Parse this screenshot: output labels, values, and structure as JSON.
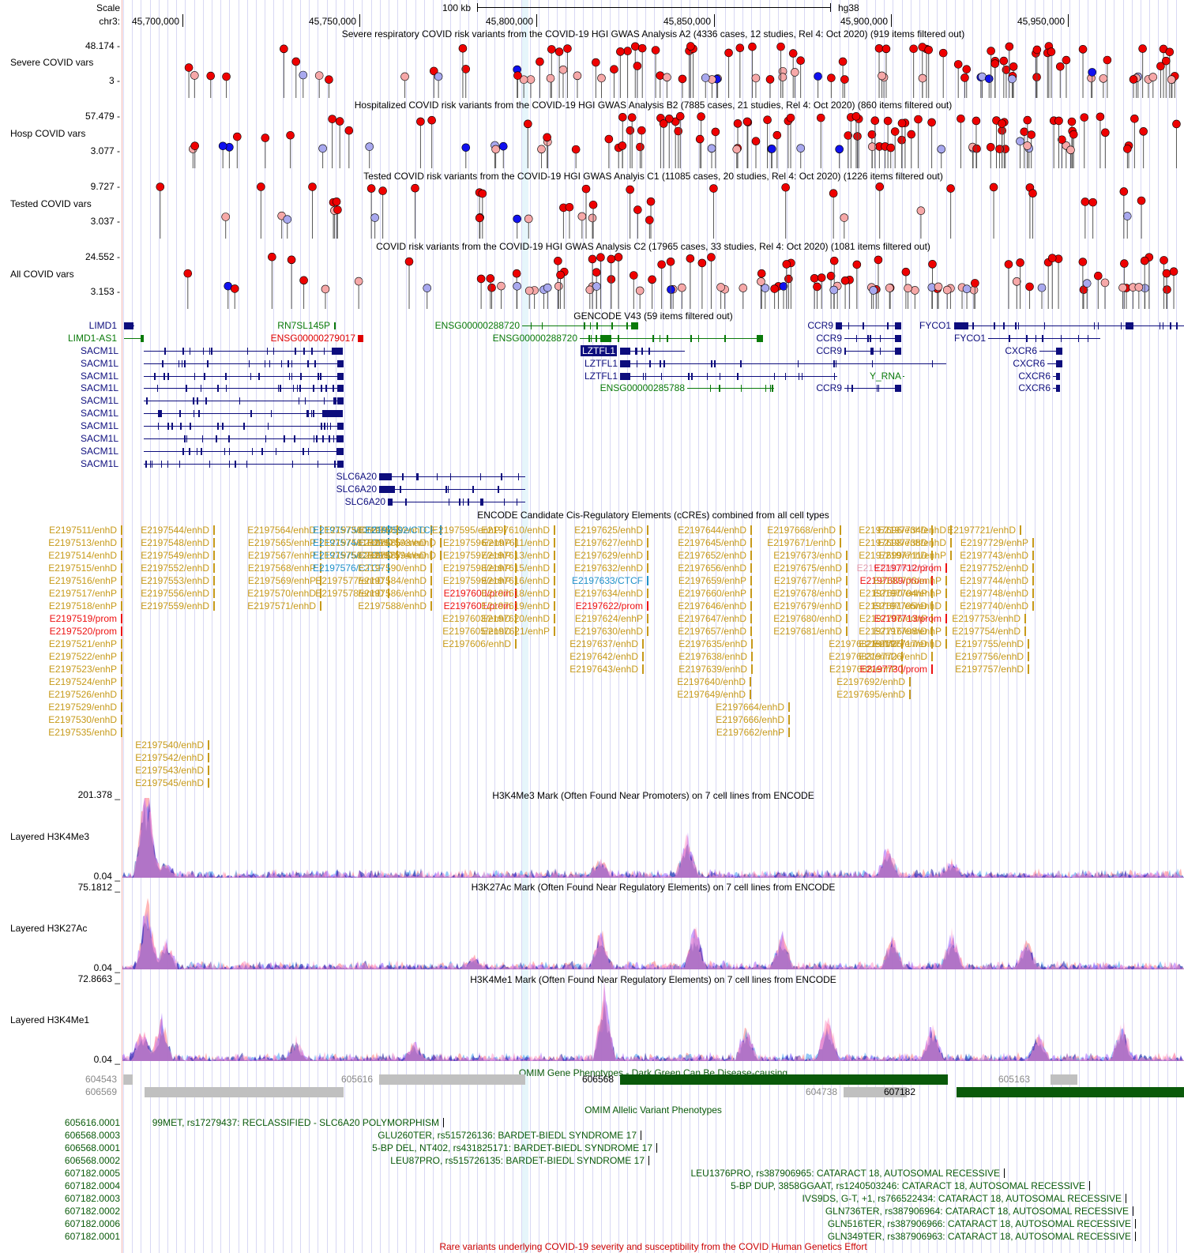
{
  "header": {
    "scale_label": "Scale",
    "scale_text": "100 kb",
    "assembly": "hg38",
    "chrom_label": "chr3:",
    "positions": [
      "45,700,000",
      "45,750,000",
      "45,800,000",
      "45,850,000",
      "45,900,000",
      "45,950,000"
    ]
  },
  "tracks": {
    "severe": {
      "label": "Severe COVID vars",
      "title": "Severe respiratory COVID risk variants from the COVID-19 HGI GWAS Analysis A2 (4336 cases, 12 studies, Rel 4: Oct 2020) (919 items filtered out)",
      "ymax": "48.174 -",
      "ymin": "3 -"
    },
    "hosp": {
      "label": "Hosp COVID vars",
      "title": "Hospitalized COVID risk variants from the COVID-19 HGI GWAS Analysis B2 (7885 cases, 21 studies, Rel 4: Oct 2020) (860 items filtered out)",
      "ymax": "57.479 -",
      "ymin": "3.077 -"
    },
    "tested": {
      "label": "Tested COVID vars",
      "title": "Tested COVID risk variants from the COVID-19 HGI GWAS Analyis C1 (11085 cases, 20 studies, Rel 4: Oct 2020) (1226 items filtered out)",
      "ymax": "9.727 -",
      "ymin": "3.037 -"
    },
    "all": {
      "label": "All COVID vars",
      "title": "COVID risk variants from the COVID-19 HGI GWAS Analysis C2 (17965 cases, 33 studies, Rel 4: Oct 2020) (1081 items filtered out)",
      "ymax": "24.552 -",
      "ymin": "3.153 -"
    },
    "gencode": {
      "title": "GENCODE V43 (59 items filtered out)"
    },
    "ccre": {
      "title": "ENCODE Candidate Cis-Regulatory Elements (cCREs) combined from all cell types"
    },
    "h3k4me3": {
      "label": "Layered H3K4Me3",
      "title": "H3K4Me3 Mark (Often Found Near Promoters) on 7 cell lines from ENCODE",
      "ymax": "201.378 _",
      "ymin": "0.04 _"
    },
    "h3k27ac": {
      "label": "Layered H3K27Ac",
      "title": "H3K27Ac Mark (Often Found Near Regulatory Elements) on 7 cell lines from ENCODE",
      "ymax": "75.1812 _",
      "ymin": "0.04 _"
    },
    "h3k4me1": {
      "label": "Layered H3K4Me1",
      "title": "H3K4Me1 Mark (Often Found Near Regulatory Elements) on 7 cell lines from ENCODE",
      "ymax": "72.8663 _",
      "ymin": "0.04 _"
    },
    "omim_gene": {
      "title": "OMIM Gene Phenotypes - Dark Green Can Be Disease-causing"
    },
    "omim_allelic": {
      "title": "OMIM Allelic Variant Phenotypes"
    },
    "rare": {
      "title": "Rare variants underlying COVID-19 severity and susceptibility from the COVID Human Genetics Effort"
    }
  },
  "colors": {
    "gene_blue": "#0d0d7d",
    "gene_green": "#0a7a0a",
    "gene_red": "#e00000",
    "enh": "#c79a1a",
    "prom": "#ee1111",
    "ctcf": "#1e90c8",
    "k4m3": "#e29bac",
    "omim_dark": "#0a5a0a",
    "omim_gray": "#c0c0c0",
    "pt_red": "#ee0000",
    "pt_pink": "#f6a8a8",
    "pt_blue": "#1010ee",
    "pt_lblue": "#a8a8ee"
  },
  "genes": [
    {
      "name": "LIMD1",
      "c": "blue"
    },
    {
      "name": "LIMD1-AS1",
      "c": "green"
    },
    {
      "name": "RN7SL145P",
      "c": "green"
    },
    {
      "name": "ENSG00000279017",
      "c": "red"
    },
    {
      "name": "SACM1L",
      "c": "blue"
    },
    {
      "name": "SACM1L",
      "c": "blue"
    },
    {
      "name": "SACM1L",
      "c": "blue"
    },
    {
      "name": "SACM1L",
      "c": "blue"
    },
    {
      "name": "SACM1L",
      "c": "blue"
    },
    {
      "name": "SACM1L",
      "c": "blue"
    },
    {
      "name": "SACM1L",
      "c": "blue"
    },
    {
      "name": "SACM1L",
      "c": "blue"
    },
    {
      "name": "SACM1L",
      "c": "blue"
    },
    {
      "name": "SACM1L",
      "c": "blue"
    },
    {
      "name": "SLC6A20",
      "c": "blue"
    },
    {
      "name": "SLC6A20",
      "c": "blue"
    },
    {
      "name": "SLC6A20",
      "c": "blue"
    },
    {
      "name": "ENSG00000288720",
      "c": "green"
    },
    {
      "name": "ENSG00000288720",
      "c": "green"
    },
    {
      "name": "LZTFL1",
      "c": "sel"
    },
    {
      "name": "LZTFL1",
      "c": "blue"
    },
    {
      "name": "LZTFL1",
      "c": "blue"
    },
    {
      "name": "ENSG00000285788",
      "c": "green"
    },
    {
      "name": "CCR9",
      "c": "blue"
    },
    {
      "name": "CCR9",
      "c": "blue"
    },
    {
      "name": "CCR9",
      "c": "blue"
    },
    {
      "name": "Y_RNA",
      "c": "green"
    },
    {
      "name": "CCR9",
      "c": "blue"
    },
    {
      "name": "FYCO1",
      "c": "blue"
    },
    {
      "name": "FYCO1",
      "c": "blue"
    },
    {
      "name": "CXCR6",
      "c": "blue"
    },
    {
      "name": "CXCR6",
      "c": "blue"
    },
    {
      "name": "CXCR6",
      "c": "blue"
    },
    {
      "name": "CXCR6",
      "c": "blue"
    }
  ],
  "ccre": [
    {
      "t": "E2197511/enhD",
      "k": "enh"
    },
    {
      "t": "E2197513/enhD",
      "k": "enh"
    },
    {
      "t": "E2197514/enhD",
      "k": "enh"
    },
    {
      "t": "E2197515/enhD",
      "k": "enh"
    },
    {
      "t": "E2197516/enhP",
      "k": "enh"
    },
    {
      "t": "E2197517/enhP",
      "k": "enh"
    },
    {
      "t": "E2197518/enhP",
      "k": "enh"
    },
    {
      "t": "E2197519/prom",
      "k": "prom"
    },
    {
      "t": "E2197520/prom",
      "k": "prom"
    },
    {
      "t": "E2197521/enhP",
      "k": "enh"
    },
    {
      "t": "E2197522/enhP",
      "k": "enh"
    },
    {
      "t": "E2197523/enhP",
      "k": "enh"
    },
    {
      "t": "E2197524/enhP",
      "k": "enh"
    },
    {
      "t": "E2197526/enhD",
      "k": "enh"
    },
    {
      "t": "E2197529/enhD",
      "k": "enh"
    },
    {
      "t": "E2197530/enhD",
      "k": "enh"
    },
    {
      "t": "E2197535/enhD",
      "k": "enh"
    },
    {
      "t": "E2197540/enhD",
      "k": "enh"
    },
    {
      "t": "E2197542/enhD",
      "k": "enh"
    },
    {
      "t": "E2197543/enhD",
      "k": "enh"
    },
    {
      "t": "E2197545/enhD",
      "k": "enh"
    },
    {
      "t": "E2197544/enhD",
      "k": "enh"
    },
    {
      "t": "E2197548/enhD",
      "k": "enh"
    },
    {
      "t": "E2197549/enhD",
      "k": "enh"
    },
    {
      "t": "E2197552/enhD",
      "k": "enh"
    },
    {
      "t": "E2197553/enhD",
      "k": "enh"
    },
    {
      "t": "E2197556/enhD",
      "k": "enh"
    },
    {
      "t": "E2197559/enhD",
      "k": "enh"
    },
    {
      "t": "E2197564/enhD",
      "k": "enh"
    },
    {
      "t": "E2197565/enhP",
      "k": "enh"
    },
    {
      "t": "E2197567/enhP",
      "k": "enh"
    },
    {
      "t": "E2197568/enhP",
      "k": "enh"
    },
    {
      "t": "E2197569/enhP",
      "k": "enh"
    },
    {
      "t": "E2197570/enhD",
      "k": "enh"
    },
    {
      "t": "E2197571/enhD",
      "k": "enh"
    },
    {
      "t": "E2197573/CTCF",
      "k": "ctcf"
    },
    {
      "t": "E2197574/CTCF",
      "k": "ctcf"
    },
    {
      "t": "E2197575/CTCF",
      "k": "ctcf"
    },
    {
      "t": "E2197576/CTCF",
      "k": "ctcf"
    },
    {
      "t": "E2197577/enhD",
      "k": "enh"
    },
    {
      "t": "E2197578/enhD",
      "k": "enh"
    },
    {
      "t": "E2197580/enhD",
      "k": "enh"
    },
    {
      "t": "E2197581/enhD",
      "k": "enh"
    },
    {
      "t": "E2197582/enhD",
      "k": "enh"
    },
    {
      "t": "E2197583/enhD",
      "k": "enh"
    },
    {
      "t": "E2197585/enhD",
      "k": "enh"
    },
    {
      "t": "E2197587/enhD",
      "k": "enh"
    },
    {
      "t": "E2197590/enhD",
      "k": "enh"
    },
    {
      "t": "E2197584/enhD",
      "k": "enh"
    },
    {
      "t": "E2197586/enhD",
      "k": "enh"
    },
    {
      "t": "E2197588/enhD",
      "k": "enh"
    },
    {
      "t": "E2197592/CTCF",
      "k": "ctcf"
    },
    {
      "t": "E2197593/enhD",
      "k": "enh"
    },
    {
      "t": "E2197594/enhD",
      "k": "enh"
    },
    {
      "t": "E2197595/enhP",
      "k": "enh"
    },
    {
      "t": "E2197596/enhP",
      "k": "enh"
    },
    {
      "t": "E2197597/enhP",
      "k": "enh"
    },
    {
      "t": "E2197598/enhP",
      "k": "enh"
    },
    {
      "t": "E2197599/enhP",
      "k": "enh"
    },
    {
      "t": "E2197600/prom",
      "k": "prom"
    },
    {
      "t": "E2197601/prom",
      "k": "prom"
    },
    {
      "t": "E2197603/enhD",
      "k": "enh"
    },
    {
      "t": "E2197605/enhD",
      "k": "enh"
    },
    {
      "t": "E2197606/enhD",
      "k": "enh"
    },
    {
      "t": "E2197610/enhD",
      "k": "enh"
    },
    {
      "t": "E2197611/enhD",
      "k": "enh"
    },
    {
      "t": "E2197613/enhD",
      "k": "enh"
    },
    {
      "t": "E2197615/enhD",
      "k": "enh"
    },
    {
      "t": "E2197616/enhD",
      "k": "enh"
    },
    {
      "t": "E2197618/enhD",
      "k": "enh"
    },
    {
      "t": "E2197619/enhD",
      "k": "enh"
    },
    {
      "t": "E2197620/enhD",
      "k": "enh"
    },
    {
      "t": "E2197621/enhP",
      "k": "enh"
    },
    {
      "t": "E2197625/enhD",
      "k": "enh"
    },
    {
      "t": "E2197627/enhD",
      "k": "enh"
    },
    {
      "t": "E2197629/enhD",
      "k": "enh"
    },
    {
      "t": "E2197632/enhD",
      "k": "enh"
    },
    {
      "t": "E2197633/CTCF",
      "k": "ctcf"
    },
    {
      "t": "E2197634/enhD",
      "k": "enh"
    },
    {
      "t": "E2197622/prom",
      "k": "prom"
    },
    {
      "t": "E2197624/enhP",
      "k": "enh"
    },
    {
      "t": "E2197630/enhD",
      "k": "enh"
    },
    {
      "t": "E2197637/enhD",
      "k": "enh"
    },
    {
      "t": "E2197642/enhD",
      "k": "enh"
    },
    {
      "t": "E2197643/enhD",
      "k": "enh"
    },
    {
      "t": "E2197644/enhD",
      "k": "enh"
    },
    {
      "t": "E2197645/enhD",
      "k": "enh"
    },
    {
      "t": "E2197652/enhD",
      "k": "enh"
    },
    {
      "t": "E2197656/enhD",
      "k": "enh"
    },
    {
      "t": "E2197659/enhP",
      "k": "enh"
    },
    {
      "t": "E2197660/enhP",
      "k": "enh"
    },
    {
      "t": "E2197646/enhD",
      "k": "enh"
    },
    {
      "t": "E2197647/enhD",
      "k": "enh"
    },
    {
      "t": "E2197657/enhD",
      "k": "enh"
    },
    {
      "t": "E2197635/enhD",
      "k": "enh"
    },
    {
      "t": "E2197638/enhD",
      "k": "enh"
    },
    {
      "t": "E2197639/enhD",
      "k": "enh"
    },
    {
      "t": "E2197640/enhD",
      "k": "enh"
    },
    {
      "t": "E2197649/enhD",
      "k": "enh"
    },
    {
      "t": "E2197664/enhD",
      "k": "enh"
    },
    {
      "t": "E2197666/enhD",
      "k": "enh"
    },
    {
      "t": "E2197662/enhP",
      "k": "enh"
    },
    {
      "t": "E2197668/enhD",
      "k": "enh"
    },
    {
      "t": "E2197671/enhD",
      "k": "enh"
    },
    {
      "t": "E2197673/enhD",
      "k": "enh"
    },
    {
      "t": "E2197675/enhD",
      "k": "enh"
    },
    {
      "t": "E2197677/enhP",
      "k": "enh"
    },
    {
      "t": "E2197678/enhD",
      "k": "enh"
    },
    {
      "t": "E2197679/enhD",
      "k": "enh"
    },
    {
      "t": "E2197680/enhD",
      "k": "enh"
    },
    {
      "t": "E2197681/enhD",
      "k": "enh"
    },
    {
      "t": "E2197682/enhD",
      "k": "enh"
    },
    {
      "t": "E2197683/enhD",
      "k": "enh"
    },
    {
      "t": "E2197688/enhP",
      "k": "enh"
    },
    {
      "t": "E2197692/enhD",
      "k": "enh"
    },
    {
      "t": "E2197695/enhD",
      "k": "enh"
    },
    {
      "t": "E2197696/enhD",
      "k": "enh"
    },
    {
      "t": "E2197698/enhD",
      "k": "enh"
    },
    {
      "t": "E2197699/enhD",
      "k": "enh"
    },
    {
      "t": "E2197700/K4m3",
      "k": "k4m3"
    },
    {
      "t": "E2197689/prom",
      "k": "prom"
    },
    {
      "t": "E2197690/enhP",
      "k": "enh"
    },
    {
      "t": "E2197691/enhD",
      "k": "enh"
    },
    {
      "t": "E2197706/enhP",
      "k": "enh"
    },
    {
      "t": "E2197716/enhD",
      "k": "enh"
    },
    {
      "t": "E2197725/enhD",
      "k": "enh"
    },
    {
      "t": "E2197726/enhD",
      "k": "enh"
    },
    {
      "t": "E2197730/prom",
      "k": "prom"
    },
    {
      "t": "E2197734/enhD",
      "k": "enh"
    },
    {
      "t": "E2197738/enhD",
      "k": "enh"
    },
    {
      "t": "E2197711/enhP",
      "k": "enh"
    },
    {
      "t": "E2197712/prom",
      "k": "prom"
    },
    {
      "t": "E2197703/enhP",
      "k": "enh"
    },
    {
      "t": "E2197704/enhP",
      "k": "enh"
    },
    {
      "t": "E2197705/enhD",
      "k": "enh"
    },
    {
      "t": "E2197713/prom",
      "k": "prom"
    },
    {
      "t": "E2197708/enhP",
      "k": "enh"
    },
    {
      "t": "E2197717/enhD",
      "k": "enh"
    },
    {
      "t": "E2197721/enhD",
      "k": "enh"
    },
    {
      "t": "E2197729/enhP",
      "k": "enh"
    },
    {
      "t": "E2197743/enhD",
      "k": "enh"
    },
    {
      "t": "E2197752/enhD",
      "k": "enh"
    },
    {
      "t": "E2197744/enhD",
      "k": "enh"
    },
    {
      "t": "E2197748/enhD",
      "k": "enh"
    },
    {
      "t": "E2197740/enhD",
      "k": "enh"
    },
    {
      "t": "E2197753/enhD",
      "k": "enh"
    },
    {
      "t": "E2197754/enhD",
      "k": "enh"
    },
    {
      "t": "E2197755/enhD",
      "k": "enh"
    },
    {
      "t": "E2197756/enhD",
      "k": "enh"
    },
    {
      "t": "E2197757/enhD",
      "k": "enh"
    }
  ],
  "omim_genes": [
    {
      "id": "604543",
      "dark": false
    },
    {
      "id": "606569",
      "dark": false
    },
    {
      "id": "605616",
      "dark": false
    },
    {
      "id": "606568",
      "dark": true
    },
    {
      "id": "604738",
      "dark": false
    },
    {
      "id": "605163",
      "dark": false
    },
    {
      "id": "607182",
      "dark": true
    }
  ],
  "omim_allelic": [
    {
      "id": "605616.0001",
      "text": "99MET, rs17279437: RECLASSIFIED - SLC6A20 POLYMORPHISM"
    },
    {
      "id": "606568.0003",
      "text": "GLU260TER, rs515726136: BARDET-BIEDL SYNDROME 17"
    },
    {
      "id": "606568.0001",
      "text": "5-BP DEL, NT402, rs431825171: BARDET-BIEDL SYNDROME 17"
    },
    {
      "id": "606568.0002",
      "text": "LEU87PRO, rs515726135: BARDET-BIEDL SYNDROME 17"
    },
    {
      "id": "607182.0005",
      "text": "LEU1376PRO, rs387906965: CATARACT 18, AUTOSOMAL RECESSIVE"
    },
    {
      "id": "607182.0004",
      "text": "5-BP DUP, 3858GGAAT, rs1240503246: CATARACT 18, AUTOSOMAL RECESSIVE"
    },
    {
      "id": "607182.0003",
      "text": "IVS9DS, G-T, +1, rs766522434: CATARACT 18, AUTOSOMAL RECESSIVE"
    },
    {
      "id": "607182.0002",
      "text": "GLN736TER, rs387906964: CATARACT 18, AUTOSOMAL RECESSIVE"
    },
    {
      "id": "607182.0006",
      "text": "GLN516TER, rs387906966: CATARACT 18, AUTOSOMAL RECESSIVE"
    },
    {
      "id": "607182.0001",
      "text": "GLN349TER, rs387906963: CATARACT 18, AUTOSOMAL RECESSIVE"
    }
  ]
}
